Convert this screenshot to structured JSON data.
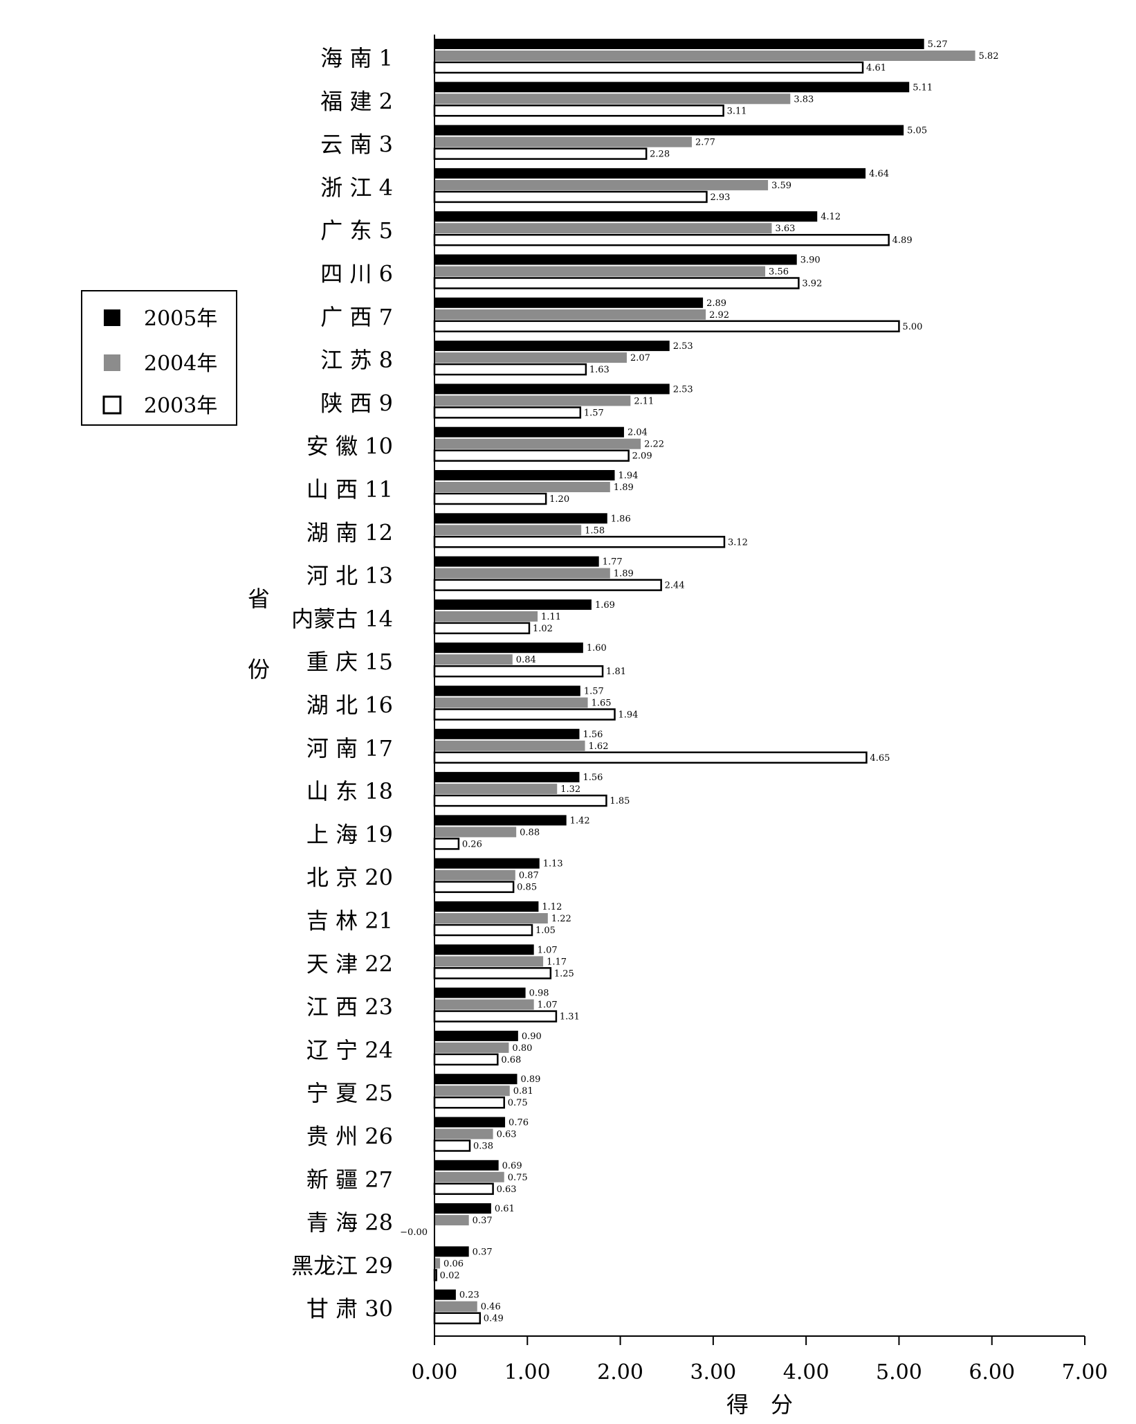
{
  "chart_data": {
    "type": "bar",
    "orientation": "horizontal",
    "categories": [
      "海 南 1",
      "福 建 2",
      "云 南 3",
      "浙 江 4",
      "广 东 5",
      "四 川 6",
      "广 西 7",
      "江 苏 8",
      "陕 西 9",
      "安 徽 10",
      "山 西 11",
      "湖 南 12",
      "河 北 13",
      "内蒙古 14",
      "重 庆 15",
      "湖 北 16",
      "河 南 17",
      "山 东 18",
      "上 海 19",
      "北 京 20",
      "吉 林 21",
      "天 津 22",
      "江 西 23",
      "辽 宁 24",
      "宁 夏 25",
      "贵 州 26",
      "新 疆 27",
      "青 海 28",
      "黑龙江 29",
      "甘 肃 30"
    ],
    "series": [
      {
        "name": "2005年",
        "color": "#000000",
        "values": [
          5.27,
          5.11,
          5.05,
          4.64,
          4.12,
          3.9,
          2.89,
          2.53,
          2.53,
          2.04,
          1.94,
          1.86,
          1.77,
          1.69,
          1.6,
          1.57,
          1.56,
          1.56,
          1.42,
          1.13,
          1.12,
          1.07,
          0.98,
          0.9,
          0.89,
          0.76,
          0.69,
          0.61,
          0.37,
          0.23
        ],
        "labels": [
          "5.27",
          "5.11",
          "5.05",
          "4.64",
          "4.12",
          "3.90",
          "2.89",
          "2.53",
          "2.53",
          "2.04",
          "1.94",
          "1.86",
          "1.77",
          "1.69",
          "1.60",
          "1.57",
          "1.56",
          "1.56",
          "1.42",
          "1.13",
          "1.12",
          "1.07",
          "0.98",
          "0.90",
          "0.89",
          "0.76",
          "0.69",
          "0.61",
          "0.37",
          "0.23"
        ]
      },
      {
        "name": "2004年",
        "color": "#8c8c8c",
        "values": [
          5.82,
          3.83,
          2.77,
          3.59,
          3.63,
          3.56,
          2.92,
          2.07,
          2.11,
          2.22,
          1.89,
          1.58,
          1.89,
          1.11,
          0.84,
          1.65,
          1.62,
          1.32,
          0.88,
          0.87,
          1.22,
          1.17,
          1.07,
          0.8,
          0.81,
          0.63,
          0.75,
          0.37,
          0.06,
          0.46
        ],
        "labels": [
          "5.82",
          "3.83",
          "2.77",
          "3.59",
          "3.63",
          "3.56",
          "2.92",
          "2.07",
          "2.11",
          "2.22",
          "1.89",
          "1.58",
          "1.89",
          "1.11",
          "0.84",
          "1.65",
          "1.62",
          "1.32",
          "0.88",
          "0.87",
          "1.22",
          "1.17",
          "1.07",
          "0.80",
          "0.81",
          "0.63",
          "0.75",
          "0.37",
          "0.06",
          "0.46"
        ]
      },
      {
        "name": "2003年",
        "color": "#ffffff",
        "values": [
          4.61,
          3.11,
          2.28,
          2.93,
          4.89,
          3.92,
          5.0,
          1.63,
          1.57,
          2.09,
          1.2,
          3.12,
          2.44,
          1.02,
          1.81,
          1.94,
          4.65,
          1.85,
          0.26,
          0.85,
          1.05,
          1.25,
          1.31,
          0.68,
          0.75,
          0.38,
          0.63,
          0.0,
          0.02,
          0.49
        ],
        "labels": [
          "4.61",
          "3.11",
          "2.28",
          "2.93",
          "4.89",
          "3.92",
          "5.00",
          "1.63",
          "1.57",
          "2.09",
          "1.20",
          "3.12",
          "2.44",
          "1.02",
          "1.81",
          "1.94",
          "4.65",
          "1.85",
          "0.26",
          "0.85",
          "1.05",
          "1.25",
          "1.31",
          "0.68",
          "0.75",
          "0.38",
          "0.63",
          "−0.00",
          "0.02",
          "0.49"
        ]
      }
    ],
    "xlabel": "得　分",
    "ylabel": "省　份",
    "ylabel_chars": [
      "省",
      "份"
    ],
    "xlim": [
      0,
      7
    ],
    "xticks": [
      "0.00",
      "1.00",
      "2.00",
      "3.00",
      "4.00",
      "5.00",
      "6.00",
      "7.00"
    ],
    "legend_placement": "left-middle",
    "grid": false
  }
}
